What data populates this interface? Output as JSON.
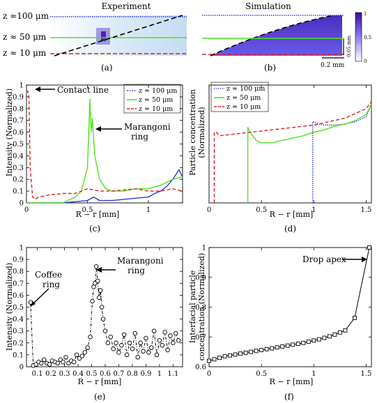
{
  "colors": {
    "blue": "#2b35e6",
    "green": "#4fe21b",
    "red": "#e02020",
    "black": "#000000",
    "heat_low": "#ffffff",
    "heat_high": "#3a0a9a"
  },
  "panel_labels": {
    "a": "(a)",
    "b": "(b)",
    "c": "(c)",
    "d": "(d)",
    "e": "(e)",
    "f": "(f)"
  },
  "top": {
    "experiment_title": "Experiment",
    "simulation_title": "Simulation",
    "z_labels": [
      "z ≈100 μm",
      "z ≈ 50 μm",
      "z ≈ 10 μm"
    ],
    "scale_vertical": "0.05 mm",
    "scale_horizontal": "0.2 mm",
    "colorbar_ticks": [
      "1",
      "0.5",
      "0"
    ]
  },
  "legend_entries": [
    "z ≈ 100 μm",
    "z ≈ 50 μm",
    "z ≈ 10 μm"
  ],
  "chart_data": [
    {
      "panel": "c",
      "type": "line",
      "xlabel": "R − r [mm]",
      "ylabel": "Intensity (Normalized)",
      "xlim": [
        0,
        1.28
      ],
      "ylim": [
        0,
        1
      ],
      "xticks": [
        0,
        0.5,
        1
      ],
      "xtick_labels": [
        "0",
        "0.5",
        "1"
      ],
      "yticks": [
        0,
        0.1,
        0.2,
        0.3,
        0.4,
        0.5,
        0.6,
        0.7,
        0.8,
        0.9,
        1
      ],
      "ytick_labels": [
        "0",
        "0.1",
        "0.2",
        "0.3",
        "0.4",
        "0.5",
        "0.6",
        "0.7",
        "0.8",
        "0.9",
        "1"
      ],
      "annotations": [
        "Contact line",
        "Marangoni ring"
      ],
      "legend_position": "top-right",
      "series": [
        {
          "name": "z ≈ 100 μm",
          "color": "#2b35e6",
          "style": "solid",
          "x": [
            0.0,
            0.05,
            0.1,
            0.2,
            0.3,
            0.4,
            0.5,
            0.55,
            0.6,
            0.7,
            0.8,
            0.9,
            1.0,
            1.05,
            1.1,
            1.15,
            1.2,
            1.25,
            1.28
          ],
          "y": [
            0.0,
            0.0,
            0.0,
            0.0,
            0.0,
            0.01,
            0.02,
            0.05,
            0.02,
            0.02,
            0.03,
            0.04,
            0.05,
            0.08,
            0.1,
            0.14,
            0.2,
            0.28,
            0.22
          ]
        },
        {
          "name": "z ≈ 50 μm",
          "color": "#4fe21b",
          "style": "solid",
          "x": [
            0.0,
            0.05,
            0.1,
            0.2,
            0.3,
            0.4,
            0.45,
            0.5,
            0.52,
            0.53,
            0.54,
            0.56,
            0.6,
            0.65,
            0.7,
            0.8,
            0.9,
            1.0,
            1.1,
            1.2,
            1.28
          ],
          "y": [
            0.0,
            0.0,
            0.0,
            0.0,
            0.0,
            0.05,
            0.1,
            0.3,
            0.88,
            0.6,
            0.72,
            0.4,
            0.2,
            0.12,
            0.1,
            0.1,
            0.12,
            0.12,
            0.15,
            0.2,
            0.22
          ]
        },
        {
          "name": "z ≈ 10 μm",
          "color": "#e02020",
          "style": "dashed",
          "x": [
            0.0,
            0.01,
            0.02,
            0.03,
            0.05,
            0.07,
            0.1,
            0.2,
            0.3,
            0.4,
            0.5,
            0.6,
            0.7,
            0.8,
            0.9,
            1.0,
            1.1,
            1.2,
            1.28
          ],
          "y": [
            0.95,
            0.95,
            0.9,
            0.3,
            0.05,
            0.03,
            0.05,
            0.07,
            0.08,
            0.08,
            0.12,
            0.1,
            0.1,
            0.11,
            0.12,
            0.1,
            0.1,
            0.12,
            0.1
          ]
        }
      ]
    },
    {
      "panel": "d",
      "type": "line",
      "xlabel": "R − r [mm]",
      "ylabel": "Particle concentration (Normalized)",
      "xlim": [
        0,
        1.55
      ],
      "ylim": [
        0,
        1
      ],
      "xticks": [
        0,
        0.5,
        1,
        1.5
      ],
      "xtick_labels": [
        "0",
        "0.5",
        "1",
        "1.5"
      ],
      "yticks": [],
      "ytick_labels": [],
      "legend_position": "top-left",
      "series": [
        {
          "name": "z ≈ 100 μm",
          "color": "#2b35e6",
          "style": "dotted",
          "x": [
            0.99,
            0.99,
            1.05,
            1.1,
            1.2,
            1.3,
            1.4,
            1.5,
            1.55
          ],
          "y": [
            0.0,
            0.69,
            0.67,
            0.66,
            0.66,
            0.67,
            0.69,
            0.73,
            0.84
          ]
        },
        {
          "name": "z ≈ 50 μm",
          "color": "#4fe21b",
          "style": "solid",
          "x": [
            0.37,
            0.37,
            0.4,
            0.45,
            0.5,
            0.6,
            0.7,
            0.8,
            0.9,
            1.0,
            1.1,
            1.2,
            1.3,
            1.4,
            1.5,
            1.55
          ],
          "y": [
            0.0,
            0.64,
            0.59,
            0.53,
            0.51,
            0.51,
            0.53,
            0.55,
            0.57,
            0.6,
            0.62,
            0.65,
            0.67,
            0.7,
            0.75,
            0.84
          ]
        },
        {
          "name": "z ≈ 10 μm",
          "color": "#e02020",
          "style": "dashed",
          "x": [
            0.05,
            0.05,
            0.07,
            0.1,
            0.2,
            0.3,
            0.4,
            0.5,
            0.6,
            0.7,
            0.8,
            0.9,
            1.0,
            1.1,
            1.2,
            1.3,
            1.4,
            1.5,
            1.55
          ],
          "y": [
            0.0,
            0.6,
            0.6,
            0.57,
            0.58,
            0.59,
            0.6,
            0.61,
            0.62,
            0.63,
            0.64,
            0.65,
            0.66,
            0.68,
            0.7,
            0.72,
            0.76,
            0.8,
            0.86
          ]
        }
      ]
    },
    {
      "panel": "e",
      "type": "line",
      "xlabel": "R − r [mm]",
      "ylabel": "Intensity (Normalized)",
      "xlim": [
        0.02,
        1.17
      ],
      "ylim": [
        0,
        1
      ],
      "xticks": [
        0.1,
        0.2,
        0.3,
        0.4,
        0.5,
        0.6,
        0.7,
        0.8,
        0.9,
        1,
        1.1
      ],
      "xtick_labels": [
        "0.1",
        "0.2",
        "0.3",
        "0.4",
        "0.5",
        "0.6",
        "0.7",
        "0.8",
        "0.9",
        "1",
        "1.1"
      ],
      "yticks": [
        0,
        0.1,
        0.2,
        0.3,
        0.4,
        0.5,
        0.6,
        0.7,
        0.8,
        0.9,
        1
      ],
      "ytick_labels": [
        "0",
        "0.1",
        "0.2",
        "0.3",
        "0.4",
        "0.5",
        "0.6",
        "0.7",
        "0.8",
        "0.9",
        "1"
      ],
      "annotations": [
        "Coffee ring",
        "Marangoni ring"
      ],
      "series": [
        {
          "name": "",
          "color": "#000000",
          "style": "dash-dot",
          "marker": "circle",
          "x": [
            0.05,
            0.07,
            0.09,
            0.11,
            0.13,
            0.15,
            0.17,
            0.19,
            0.21,
            0.23,
            0.25,
            0.27,
            0.29,
            0.31,
            0.33,
            0.35,
            0.37,
            0.39,
            0.41,
            0.43,
            0.45,
            0.47,
            0.49,
            0.505,
            0.515,
            0.525,
            0.535,
            0.545,
            0.555,
            0.565,
            0.575,
            0.585,
            0.6,
            0.62,
            0.64,
            0.66,
            0.68,
            0.7,
            0.72,
            0.74,
            0.76,
            0.78,
            0.8,
            0.82,
            0.84,
            0.86,
            0.88,
            0.9,
            0.92,
            0.94,
            0.96,
            0.98,
            1.0,
            1.02,
            1.04,
            1.06,
            1.08,
            1.1,
            1.12,
            1.14
          ],
          "y": [
            0.54,
            0.01,
            0.02,
            0.04,
            0.03,
            0.06,
            0.03,
            0.02,
            0.05,
            0.04,
            0.03,
            0.06,
            0.04,
            0.08,
            0.03,
            0.05,
            0.04,
            0.1,
            0.07,
            0.09,
            0.12,
            0.16,
            0.25,
            0.55,
            0.67,
            0.7,
            0.84,
            0.72,
            0.58,
            0.64,
            0.5,
            0.4,
            0.3,
            0.2,
            0.25,
            0.15,
            0.2,
            0.12,
            0.18,
            0.27,
            0.1,
            0.2,
            0.15,
            0.28,
            0.08,
            0.2,
            0.13,
            0.24,
            0.12,
            0.16,
            0.3,
            0.1,
            0.22,
            0.18,
            0.29,
            0.14,
            0.26,
            0.2,
            0.28,
            0.22
          ]
        }
      ]
    },
    {
      "panel": "f",
      "type": "line",
      "xlabel": "R − r [mm]",
      "ylabel": "Interfacial particle concentration (Normalized)",
      "xlim": [
        0,
        1.55
      ],
      "ylim": [
        0.6,
        1
      ],
      "xticks": [
        0,
        0.5,
        1,
        1.5
      ],
      "xtick_labels": [
        "0",
        "0.5",
        "1",
        "1.5"
      ],
      "yticks": [
        0.6,
        0.7,
        0.8,
        0.9,
        1
      ],
      "ytick_labels": [
        "0.6",
        "0.7",
        "0.8",
        "0.9",
        "1"
      ],
      "annotations": [
        "Drop apex"
      ],
      "series": [
        {
          "name": "",
          "color": "#000000",
          "style": "solid",
          "marker": "square",
          "x": [
            0.0,
            0.05,
            0.1,
            0.15,
            0.2,
            0.25,
            0.3,
            0.35,
            0.4,
            0.45,
            0.5,
            0.55,
            0.6,
            0.65,
            0.7,
            0.75,
            0.8,
            0.85,
            0.9,
            0.95,
            1.0,
            1.05,
            1.1,
            1.15,
            1.2,
            1.25,
            1.3,
            1.39,
            1.53
          ],
          "y": [
            0.62,
            0.625,
            0.63,
            0.635,
            0.638,
            0.641,
            0.644,
            0.647,
            0.65,
            0.653,
            0.656,
            0.659,
            0.662,
            0.665,
            0.668,
            0.671,
            0.674,
            0.677,
            0.68,
            0.684,
            0.688,
            0.692,
            0.697,
            0.702,
            0.708,
            0.715,
            0.722,
            0.764,
            1.0
          ]
        }
      ]
    }
  ]
}
